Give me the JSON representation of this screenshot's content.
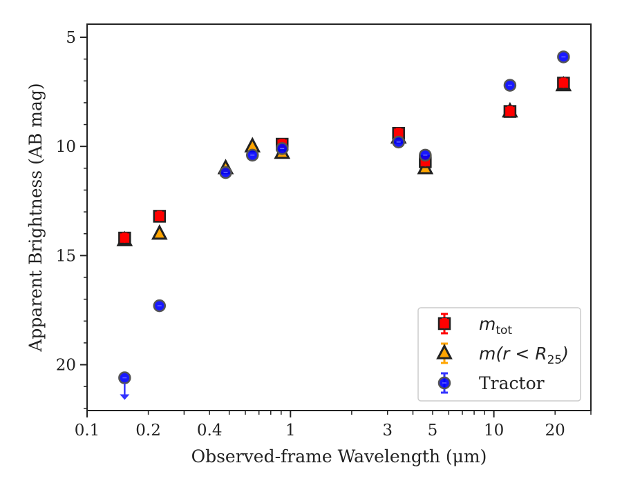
{
  "chart_data": {
    "type": "scatter",
    "xlabel": "Observed-frame Wavelength (μm)",
    "ylabel": "Apparent Brightness (AB mag)",
    "xscale": "log",
    "xlim": [
      0.1,
      30
    ],
    "ylim": [
      22.1,
      4.4
    ],
    "y_inverted": true,
    "x_ticks": [
      0.1,
      0.2,
      0.4,
      1,
      3,
      5,
      10,
      20
    ],
    "x_tick_labels": [
      "0.1",
      "0.2",
      "0.4",
      "1",
      "3",
      "5",
      "10",
      "20"
    ],
    "y_ticks": [
      5,
      10,
      15,
      20
    ],
    "y_tick_labels": [
      "5",
      "10",
      "15",
      "20"
    ],
    "grid": false,
    "legend_position": "bottom-right",
    "series": [
      {
        "name": "m_tot",
        "legend_main": "m",
        "legend_sub": "tot",
        "marker": "square",
        "color": "#ff0000",
        "error_color": "#ff0000",
        "points": [
          {
            "x": 0.153,
            "y": 14.2
          },
          {
            "x": 0.227,
            "y": 13.2
          },
          {
            "x": 0.91,
            "y": 9.9
          },
          {
            "x": 3.4,
            "y": 9.4
          },
          {
            "x": 4.6,
            "y": 10.7
          },
          {
            "x": 12.0,
            "y": 8.4
          },
          {
            "x": 22.0,
            "y": 7.1
          }
        ]
      },
      {
        "name": "m(r < R25)",
        "legend_main": "m(r < R",
        "legend_sub": "25",
        "legend_tail": ")",
        "marker": "triangle",
        "color": "#ffa500",
        "error_color": "#ffa500",
        "points": [
          {
            "x": 0.153,
            "y": 14.3
          },
          {
            "x": 0.227,
            "y": 14.0
          },
          {
            "x": 0.48,
            "y": 11.0
          },
          {
            "x": 0.65,
            "y": 10.0
          },
          {
            "x": 0.91,
            "y": 10.3
          },
          {
            "x": 3.4,
            "y": 9.6
          },
          {
            "x": 4.6,
            "y": 11.0
          },
          {
            "x": 12.0,
            "y": 8.4
          },
          {
            "x": 22.0,
            "y": 7.2
          }
        ]
      },
      {
        "name": "Tractor",
        "legend_main": "Tractor",
        "marker": "circle",
        "color": "#0000ff",
        "error_color": "#3333ff",
        "points": [
          {
            "x": 0.153,
            "y": 20.6,
            "upper_limit": true
          },
          {
            "x": 0.227,
            "y": 17.3
          },
          {
            "x": 0.48,
            "y": 11.2
          },
          {
            "x": 0.65,
            "y": 10.4
          },
          {
            "x": 0.91,
            "y": 10.1
          },
          {
            "x": 3.4,
            "y": 9.8
          },
          {
            "x": 4.6,
            "y": 10.4
          },
          {
            "x": 12.0,
            "y": 7.2
          },
          {
            "x": 22.0,
            "y": 5.9
          }
        ]
      }
    ]
  }
}
